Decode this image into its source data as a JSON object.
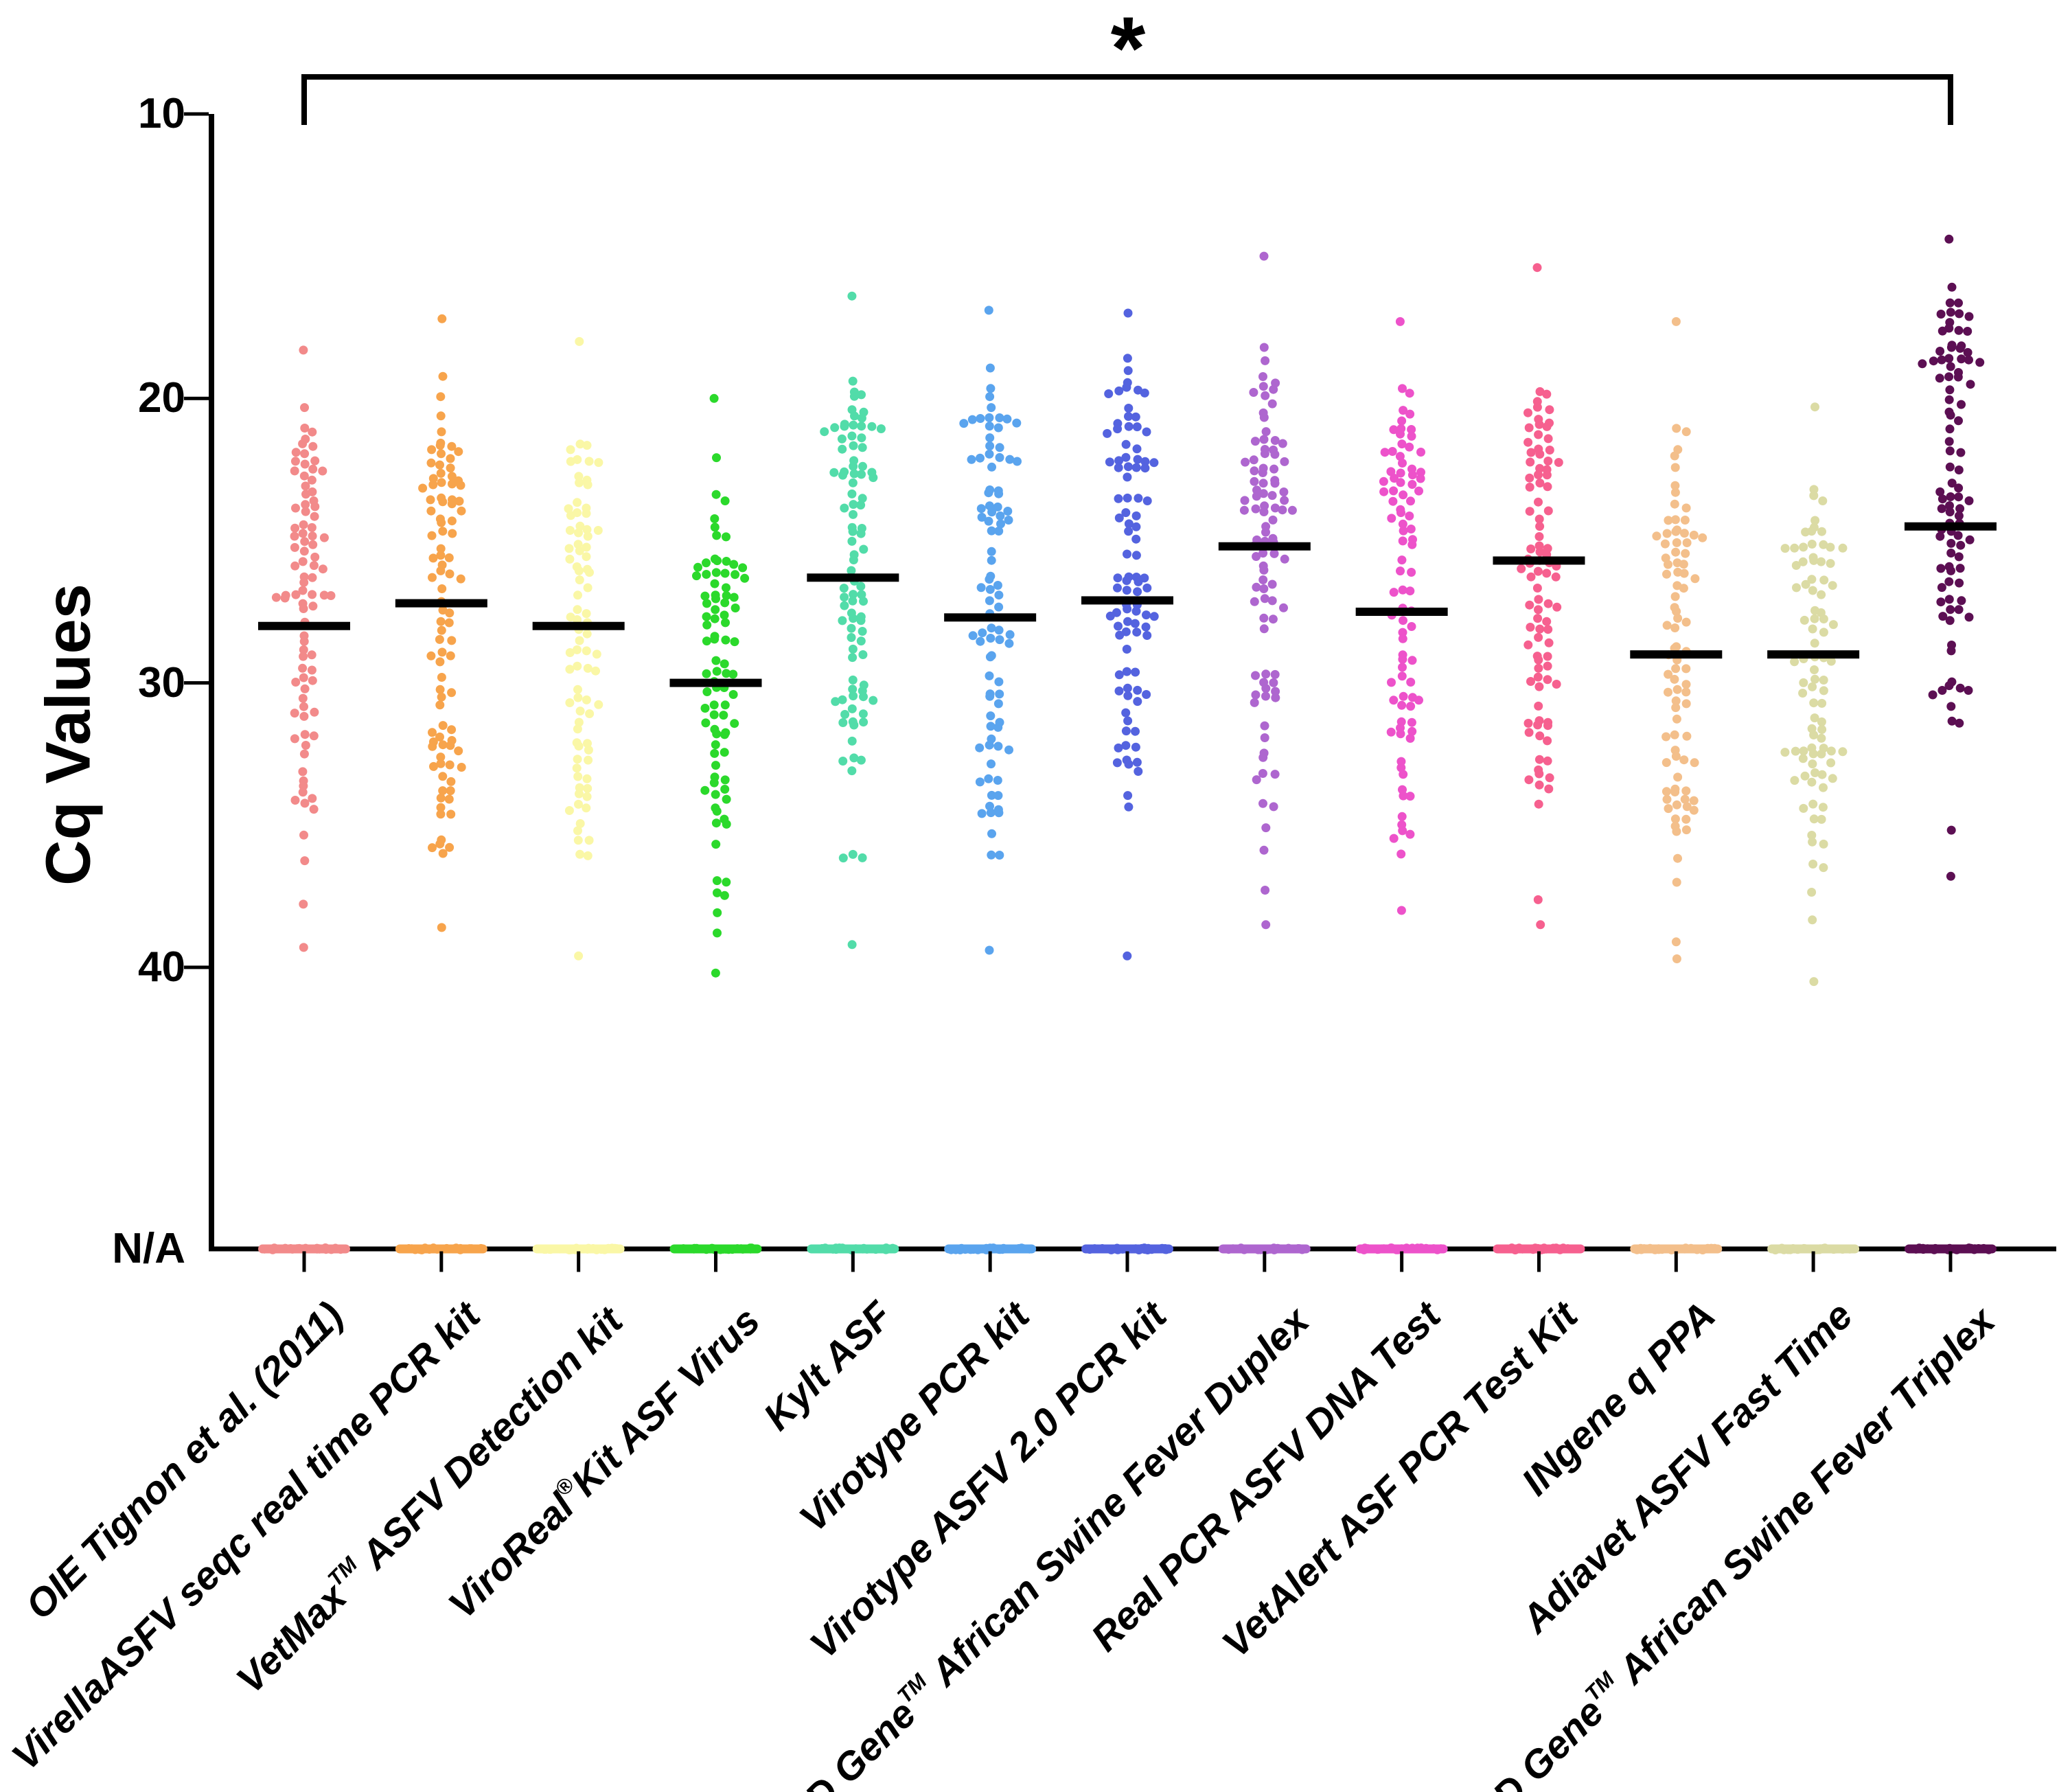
{
  "chart_data": {
    "type": "scatter",
    "subtype": "beeswarm-column-scatter",
    "title": "",
    "ylabel": "Cq Values",
    "xlabel": "",
    "y_axis": {
      "direction": "inverted",
      "tick_labels": [
        "10",
        "20",
        "30",
        "40",
        "N/A"
      ],
      "tick_values": [
        10,
        20,
        30,
        40,
        null
      ],
      "value_range_shown": [
        10,
        40
      ],
      "na_category_at_bottom": true,
      "grid": false
    },
    "legend": "none",
    "significance": {
      "label": "*",
      "from": "OIE Tignon et al. (2011)",
      "to": "ID Gene™ African Swine Fever Triplex",
      "from_index": 0,
      "to_index": 12
    },
    "median_marker": {
      "shape": "horizontal-black-bar",
      "color": "#000000"
    },
    "categories": [
      {
        "label": "OIE Tignon et al. (2011)",
        "parts": [
          {
            "t": "OIE Tignon et al. (2011)"
          }
        ],
        "color": "#F28A8A",
        "median": 28.0,
        "min": 18.3,
        "max": 39.3,
        "n": 90,
        "clusters": [
          [
            23.2,
            1.4,
            0.4
          ],
          [
            27.8,
            1.8,
            0.25
          ],
          [
            31.8,
            2.6,
            0.35
          ]
        ],
        "na_row": true,
        "seed": 101
      },
      {
        "label": "VirellaASFV seqc real time PCR kit",
        "parts": [
          {
            "t": "VirellaASFV seqc real time PCR kit"
          }
        ],
        "color": "#F7A44C",
        "median": 27.2,
        "min": 17.2,
        "max": 38.6,
        "n": 95,
        "clusters": [
          [
            22.8,
            1.5,
            0.38
          ],
          [
            27.5,
            2.0,
            0.3
          ],
          [
            32.5,
            2.6,
            0.32
          ]
        ],
        "na_row": true,
        "seed": 102
      },
      {
        "label": "VetMax™ ASFV Detection kit",
        "parts": [
          {
            "t": "VetMax"
          },
          {
            "t": "TM",
            "sup": true
          },
          {
            "t": " ASFV Detection kit"
          }
        ],
        "color": "#FAF7A6",
        "median": 28.0,
        "min": 18.0,
        "max": 39.6,
        "n": 85,
        "clusters": [
          [
            23.5,
            1.6,
            0.35
          ],
          [
            28.0,
            2.2,
            0.33
          ],
          [
            33.0,
            2.4,
            0.32
          ]
        ],
        "na_row": true,
        "seed": 103
      },
      {
        "label": "ViroReal®Kit ASF Virus",
        "parts": [
          {
            "t": "ViroReal"
          },
          {
            "t": "®",
            "sup": true
          },
          {
            "t": "Kit ASF Virus"
          }
        ],
        "color": "#2BD92B",
        "median": 30.0,
        "min": 20.0,
        "max": 40.2,
        "n": 88,
        "clusters": [
          [
            26.5,
            1.6,
            0.4
          ],
          [
            30.0,
            2.2,
            0.3
          ],
          [
            34.0,
            2.4,
            0.3
          ]
        ],
        "na_row": true,
        "seed": 104
      },
      {
        "label": "Kylt ASF",
        "parts": [
          {
            "t": "Kylt ASF"
          }
        ],
        "color": "#52DCA9",
        "median": 26.3,
        "min": 16.4,
        "max": 39.2,
        "n": 95,
        "clusters": [
          [
            21.5,
            1.3,
            0.42
          ],
          [
            26.5,
            2.2,
            0.28
          ],
          [
            31.5,
            2.8,
            0.3
          ]
        ],
        "na_row": true,
        "seed": 105
      },
      {
        "label": "Virotype PCR kit",
        "parts": [
          {
            "t": "Virotype PCR kit"
          }
        ],
        "color": "#5AA4EE",
        "median": 27.7,
        "min": 16.9,
        "max": 39.4,
        "n": 92,
        "clusters": [
          [
            22.3,
            1.5,
            0.4
          ],
          [
            27.5,
            2.2,
            0.28
          ],
          [
            32.5,
            2.8,
            0.32
          ]
        ],
        "na_row": true,
        "seed": 106
      },
      {
        "label": "Virotype ASFV 2.0 PCR kit",
        "parts": [
          {
            "t": "Virotype ASFV 2.0 PCR kit"
          }
        ],
        "color": "#5463DF",
        "median": 27.1,
        "min": 17.0,
        "max": 39.6,
        "n": 95,
        "clusters": [
          [
            22.0,
            1.5,
            0.4
          ],
          [
            27.0,
            2.2,
            0.3
          ],
          [
            31.5,
            2.6,
            0.3
          ]
        ],
        "na_row": true,
        "seed": 107
      },
      {
        "label": "ID Gene™ African Swine Fever Duplex",
        "parts": [
          {
            "t": "ID Gene"
          },
          {
            "t": "TM",
            "sup": true
          },
          {
            "t": " African Swine Fever Duplex"
          }
        ],
        "color": "#AE66CF",
        "median": 25.2,
        "min": 15.0,
        "max": 38.5,
        "n": 95,
        "clusters": [
          [
            22.5,
            1.6,
            0.45
          ],
          [
            26.5,
            2.0,
            0.25
          ],
          [
            31.0,
            2.6,
            0.3
          ]
        ],
        "na_row": true,
        "seed": 108
      },
      {
        "label": "Real PCR ASFV DNA Test",
        "parts": [
          {
            "t": "Real PCR ASFV DNA Test"
          }
        ],
        "color": "#ED52CA",
        "median": 27.5,
        "min": 17.3,
        "max": 38.0,
        "n": 90,
        "clusters": [
          [
            22.8,
            1.5,
            0.38
          ],
          [
            27.5,
            2.2,
            0.3
          ],
          [
            32.0,
            2.4,
            0.32
          ]
        ],
        "na_row": true,
        "seed": 109
      },
      {
        "label": "VetAlert ASF PCR Test Kit",
        "parts": [
          {
            "t": "VetAlert ASF PCR Test Kit"
          }
        ],
        "color": "#F6608F",
        "median": 25.7,
        "min": 15.4,
        "max": 38.5,
        "n": 95,
        "clusters": [
          [
            21.0,
            1.6,
            0.4
          ],
          [
            25.5,
            2.0,
            0.28
          ],
          [
            30.5,
            2.8,
            0.32
          ]
        ],
        "na_row": true,
        "seed": 110
      },
      {
        "label": "INgene q PPA",
        "parts": [
          {
            "t": "INgene q PPA"
          }
        ],
        "color": "#F3BF8B",
        "median": 29.0,
        "min": 17.3,
        "max": 39.7,
        "n": 88,
        "clusters": [
          [
            24.3,
            1.5,
            0.38
          ],
          [
            29.0,
            2.4,
            0.3
          ],
          [
            33.5,
            2.4,
            0.32
          ]
        ],
        "na_row": true,
        "seed": 111
      },
      {
        "label": "Adiavet ASFV Fast Time",
        "parts": [
          {
            "t": "Adiavet ASFV Fast Time"
          }
        ],
        "color": "#DBDBA4",
        "median": 29.0,
        "min": 20.3,
        "max": 40.5,
        "n": 90,
        "clusters": [
          [
            25.3,
            1.4,
            0.38
          ],
          [
            29.5,
            2.4,
            0.3
          ],
          [
            34.0,
            2.4,
            0.32
          ]
        ],
        "na_row": true,
        "seed": 112
      },
      {
        "label": "ID Gene™ African Swine Fever Triplex",
        "parts": [
          {
            "t": "ID Gene"
          },
          {
            "t": "TM",
            "sup": true
          },
          {
            "t": " African Swine Fever Triplex"
          }
        ],
        "color": "#5C0F53",
        "median": 24.5,
        "min": 14.4,
        "max": 36.8,
        "n": 95,
        "clusters": [
          [
            18.2,
            1.1,
            0.32
          ],
          [
            23.5,
            2.4,
            0.38
          ],
          [
            29.5,
            3.0,
            0.3
          ]
        ],
        "na_row": true,
        "seed": 113
      }
    ]
  }
}
